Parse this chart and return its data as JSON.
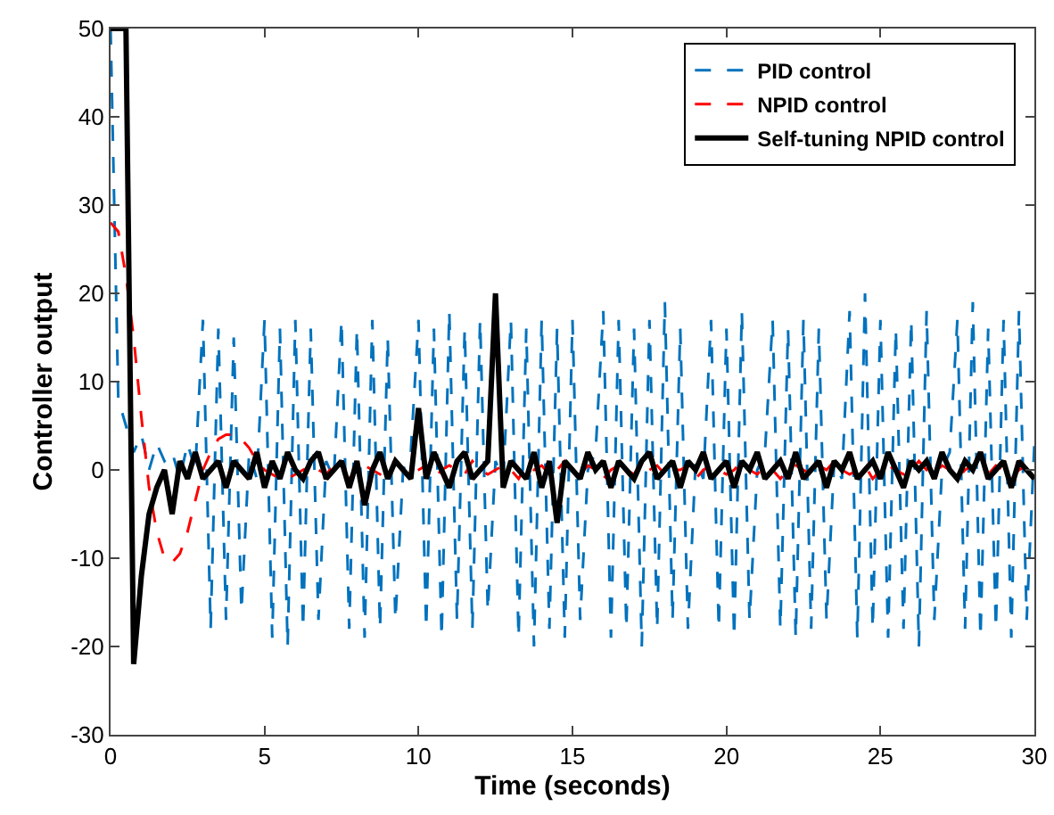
{
  "chart_data": {
    "type": "line",
    "xlabel": "Time (seconds)",
    "ylabel": "Controller output",
    "x": [
      0,
      0.25,
      0.5,
      0.75,
      1,
      1.25,
      1.5,
      1.75,
      2,
      2.25,
      2.5,
      2.75,
      3,
      3.25,
      3.5,
      3.75,
      4,
      4.25,
      4.5,
      4.75,
      5,
      5.25,
      5.5,
      5.75,
      6,
      6.25,
      6.5,
      6.75,
      7,
      7.25,
      7.5,
      7.75,
      8,
      8.25,
      8.5,
      8.75,
      9,
      9.25,
      9.5,
      9.75,
      10,
      10.25,
      10.5,
      10.75,
      11,
      11.25,
      11.5,
      11.75,
      12,
      12.25,
      12.5,
      12.75,
      13,
      13.25,
      13.5,
      13.75,
      14,
      14.25,
      14.5,
      14.75,
      15,
      15.25,
      15.5,
      15.75,
      16,
      16.25,
      16.5,
      16.75,
      17,
      17.25,
      17.5,
      17.75,
      18,
      18.25,
      18.5,
      18.75,
      19,
      19.25,
      19.5,
      19.75,
      20,
      20.25,
      20.5,
      20.75,
      21,
      21.25,
      21.5,
      21.75,
      22,
      22.25,
      22.5,
      22.75,
      23,
      23.25,
      23.5,
      23.75,
      24,
      24.25,
      24.5,
      24.75,
      25,
      25.25,
      25.5,
      25.75,
      26,
      26.25,
      26.5,
      26.75,
      27,
      27.25,
      27.5,
      27.75,
      28,
      28.25,
      28.5,
      28.75,
      29,
      29.25,
      29.5,
      29.75,
      30
    ],
    "series": [
      {
        "name": "PID control",
        "color": "#0072bd",
        "line_style": "dashed",
        "values": [
          50,
          8,
          5,
          2,
          4,
          0,
          3,
          1,
          2,
          -1,
          3,
          0,
          17,
          -18,
          16,
          -17,
          15,
          -16,
          2,
          -1,
          17,
          -19,
          16,
          -20,
          17,
          -18,
          16,
          -17,
          1,
          -1,
          17,
          -18,
          16,
          -19,
          17,
          -18,
          15,
          -17,
          0,
          2,
          17,
          -18,
          16,
          -19,
          18,
          -17,
          16,
          -18,
          17,
          -16,
          1,
          -1,
          17,
          -19,
          16,
          -20,
          17,
          -18,
          16,
          -19,
          17,
          -17,
          0,
          2,
          18,
          -19,
          17,
          -18,
          16,
          -20,
          17,
          -18,
          19,
          -17,
          16,
          -18,
          1,
          -1,
          17,
          -18,
          16,
          -19,
          18,
          -17,
          0,
          2,
          17,
          -18,
          16,
          -19,
          17,
          -18,
          16,
          -17,
          1,
          -1,
          18,
          -19,
          20,
          -18,
          17,
          -19,
          16,
          -18,
          17,
          -20,
          18,
          -17,
          0,
          2,
          17,
          -18,
          19,
          -19,
          16,
          -18,
          17,
          -19,
          18,
          -17,
          3
        ]
      },
      {
        "name": "NPID control",
        "color": "#ff0000",
        "line_style": "dashed",
        "values": [
          28,
          27,
          22,
          15,
          6,
          -2,
          -7,
          -10,
          -10.5,
          -9.5,
          -7,
          -3.5,
          0,
          2,
          3.5,
          4,
          4,
          3.5,
          2.5,
          1,
          0,
          -0.5,
          -1,
          -1,
          -0.5,
          0,
          0.5,
          0,
          -0.5,
          0.5,
          0,
          -1,
          0,
          0.5,
          0,
          -0.5,
          0.5,
          1,
          0,
          -0.5,
          0,
          0.5,
          -1,
          0,
          0.5,
          0,
          -0.5,
          1,
          0,
          -0.5,
          0,
          0.5,
          0,
          -1,
          0.5,
          0,
          0.5,
          -0.5,
          0,
          1,
          0,
          -0.5,
          0.5,
          0,
          -1,
          0,
          0.5,
          0,
          -0.5,
          1,
          0,
          0.5,
          -0.5,
          0,
          0,
          0.5,
          -1,
          0,
          0.5,
          0,
          -0.5,
          0,
          1,
          0,
          -0.5,
          0.5,
          0,
          -1,
          0,
          0.5,
          0,
          -0.5,
          0.5,
          0,
          1,
          0,
          -0.5,
          0,
          0.5,
          -1,
          0,
          0.5,
          0,
          -0.5,
          0,
          1,
          0,
          -0.5,
          0.5,
          0,
          -1,
          0,
          0.5,
          0,
          -0.5,
          0.5,
          0,
          -1,
          0,
          0.5,
          0
        ]
      },
      {
        "name": "Self-tuning NPID control",
        "color": "#000000",
        "line_style": "solid",
        "values": [
          50,
          50,
          50,
          -22,
          -12,
          -5,
          -2,
          0,
          -5,
          1,
          -1,
          2,
          -1,
          0,
          1,
          -2,
          1,
          0,
          -1,
          2,
          -2,
          1,
          -1,
          2,
          0,
          -1,
          1,
          2,
          -1,
          0,
          1,
          -2,
          1,
          -4,
          0,
          2,
          -1,
          1,
          0,
          -1,
          7,
          -1,
          2,
          0,
          -2,
          1,
          2,
          -1,
          0,
          1,
          20,
          -2,
          1,
          0,
          -1,
          2,
          -2,
          1,
          -6,
          1,
          0,
          -1,
          2,
          0,
          1,
          -2,
          1,
          0,
          -1,
          1,
          2,
          -1,
          0,
          1,
          -2,
          1,
          0,
          2,
          -1,
          0,
          1,
          -2,
          1,
          0,
          2,
          -1,
          0,
          1,
          -1,
          2,
          -1,
          0,
          1,
          -2,
          1,
          0,
          2,
          -1,
          0,
          1,
          -1,
          2,
          0,
          -2,
          1,
          0,
          1,
          -1,
          2,
          0,
          -1,
          1,
          0,
          2,
          -1,
          0,
          1,
          -2,
          1,
          0,
          -1
        ]
      }
    ],
    "xlim": [
      0,
      30
    ],
    "xticks": [
      0,
      5,
      10,
      15,
      20,
      25,
      30
    ],
    "ylim": [
      -30,
      50
    ],
    "yticks": [
      -30,
      -20,
      -10,
      0,
      10,
      20,
      30,
      40,
      50
    ],
    "grid": false,
    "legend": "top right"
  }
}
